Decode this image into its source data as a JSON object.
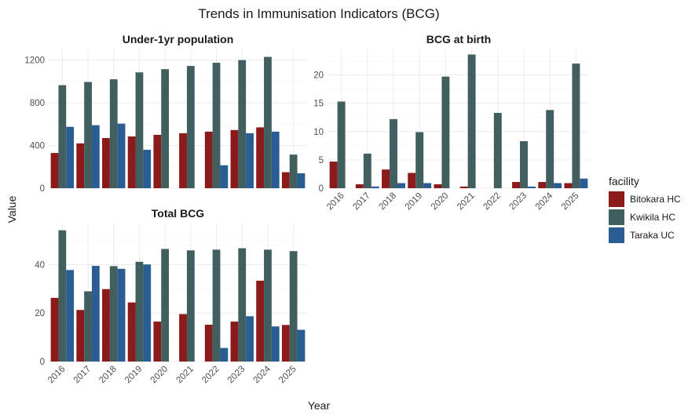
{
  "chart_data": {
    "type": "bar",
    "title": "Trends in Immunisation Indicators (BCG)",
    "xlabel": "Year",
    "ylabel": "Value",
    "legend": {
      "title": "facility",
      "placement": "right",
      "entries": [
        {
          "name": "Bitokara HC",
          "color": "#8B1A1A"
        },
        {
          "name": "Kwikila HC",
          "color": "#425F5F"
        },
        {
          "name": "Taraka UC",
          "color": "#2A5D94"
        }
      ]
    },
    "categories": [
      "2016",
      "2017",
      "2018",
      "2019",
      "2020",
      "2021",
      "2022",
      "2023",
      "2024",
      "2025"
    ],
    "panels": [
      {
        "title": "Under-1yr population",
        "ylim": [
          0,
          1300
        ],
        "yticks": [
          0,
          400,
          800,
          1200
        ],
        "series": [
          {
            "name": "Bitokara HC",
            "values": [
              330,
              420,
              470,
              485,
              500,
              515,
              530,
              545,
              570,
              150
            ]
          },
          {
            "name": "Kwikila HC",
            "values": [
              965,
              995,
              1020,
              1085,
              1115,
              1145,
              1175,
              1200,
              1230,
              315
            ]
          },
          {
            "name": "Taraka UC",
            "values": [
              575,
              590,
              605,
              360,
              null,
              null,
              215,
              515,
              530,
              140
            ]
          }
        ]
      },
      {
        "title": "BCG at birth",
        "ylim": [
          0,
          24.5
        ],
        "yticks": [
          0,
          5,
          10,
          15,
          20
        ],
        "series": [
          {
            "name": "Bitokara HC",
            "values": [
              4.7,
              0.7,
              3.3,
              2.7,
              0.7,
              0.3,
              null,
              1.1,
              1.1,
              0.9
            ]
          },
          {
            "name": "Kwikila HC",
            "values": [
              15.3,
              6.1,
              12.2,
              9.9,
              19.7,
              23.6,
              13.3,
              8.3,
              13.8,
              22.0
            ]
          },
          {
            "name": "Taraka UC",
            "values": [
              null,
              0.3,
              0.9,
              0.9,
              null,
              null,
              null,
              0.3,
              0.9,
              1.7
            ]
          }
        ]
      },
      {
        "title": "Total BCG",
        "ylim": [
          0,
          57
        ],
        "yticks": [
          0,
          20,
          40
        ],
        "series": [
          {
            "name": "Bitokara HC",
            "values": [
              26.3,
              21.3,
              29.9,
              24.4,
              16.5,
              19.6,
              15.2,
              16.5,
              33.4,
              15.1
            ]
          },
          {
            "name": "Kwikila HC",
            "values": [
              54.2,
              29.0,
              39.4,
              41.2,
              46.5,
              45.9,
              46.2,
              46.8,
              46.2,
              45.6
            ]
          },
          {
            "name": "Taraka UC",
            "values": [
              37.8,
              39.5,
              38.3,
              40.1,
              null,
              null,
              5.6,
              18.7,
              14.5,
              13.1
            ]
          }
        ]
      }
    ]
  }
}
